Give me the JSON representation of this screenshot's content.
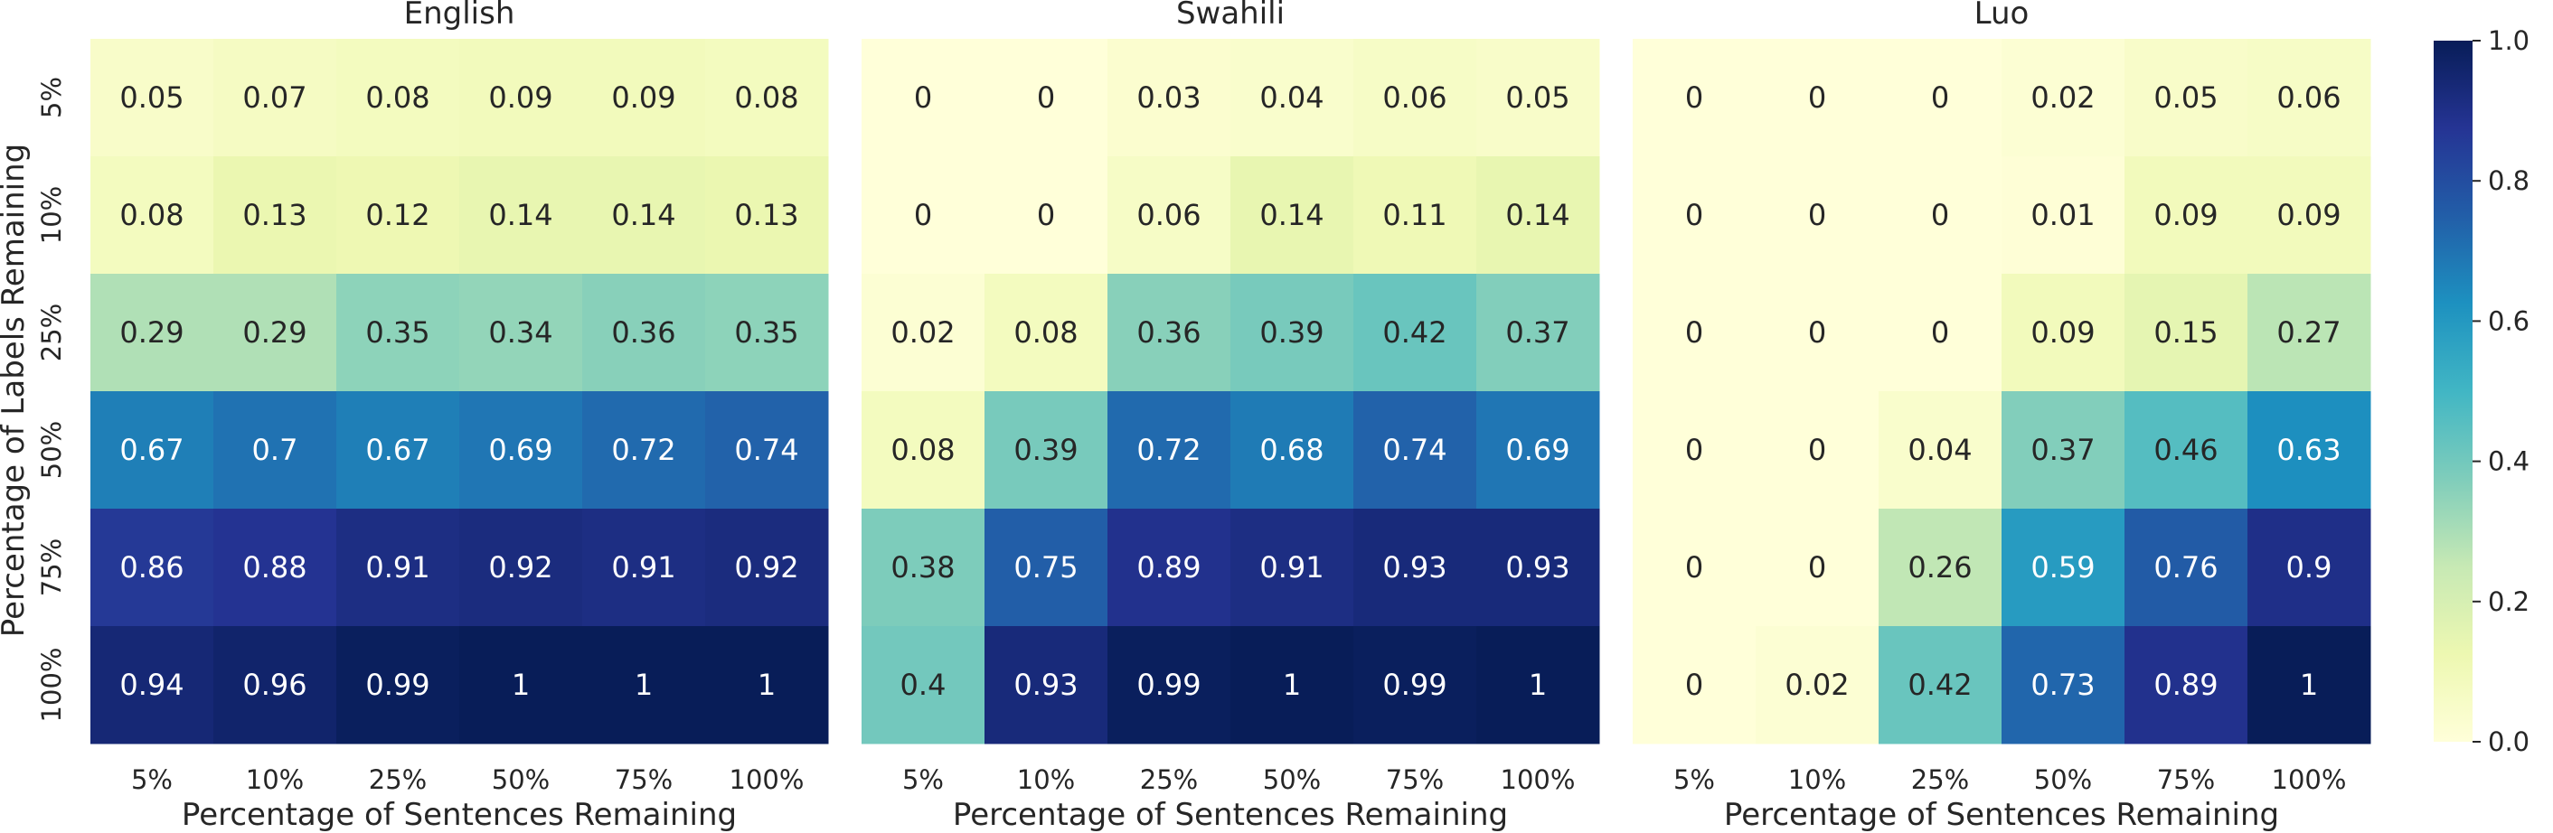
{
  "chart_data": {
    "type": "heatmap",
    "ylabel": "Percentage of Labels Remaining",
    "row_labels": [
      "5%",
      "10%",
      "25%",
      "50%",
      "75%",
      "100%"
    ],
    "col_labels": [
      "5%",
      "10%",
      "25%",
      "50%",
      "75%",
      "100%"
    ],
    "colormap": "YlGnBu",
    "colorbar": {
      "range": [
        0.0,
        1.0
      ],
      "ticks": [
        "0.0",
        "0.2",
        "0.4",
        "0.6",
        "0.8",
        "1.0"
      ]
    },
    "panels": [
      {
        "title": "English",
        "xlabel": "Percentage of Sentences Remaining",
        "values": [
          [
            0.05,
            0.07,
            0.08,
            0.09,
            0.09,
            0.08
          ],
          [
            0.08,
            0.13,
            0.12,
            0.14,
            0.14,
            0.13
          ],
          [
            0.29,
            0.29,
            0.35,
            0.34,
            0.36,
            0.35
          ],
          [
            0.67,
            0.7,
            0.67,
            0.69,
            0.72,
            0.74
          ],
          [
            0.86,
            0.88,
            0.91,
            0.92,
            0.91,
            0.92
          ],
          [
            0.94,
            0.96,
            0.99,
            1,
            1,
            1
          ]
        ]
      },
      {
        "title": "Swahili",
        "xlabel": "Percentage of Sentences Remaining",
        "values": [
          [
            0,
            0,
            0.03,
            0.04,
            0.06,
            0.05
          ],
          [
            0,
            0,
            0.06,
            0.14,
            0.11,
            0.14
          ],
          [
            0.02,
            0.08,
            0.36,
            0.39,
            0.42,
            0.37
          ],
          [
            0.08,
            0.39,
            0.72,
            0.68,
            0.74,
            0.69
          ],
          [
            0.38,
            0.75,
            0.89,
            0.91,
            0.93,
            0.93
          ],
          [
            0.4,
            0.93,
            0.99,
            1,
            0.99,
            1
          ]
        ]
      },
      {
        "title": "Luo",
        "xlabel": "Percentage of Sentences Remaining",
        "values": [
          [
            0,
            0,
            0,
            0.02,
            0.05,
            0.06
          ],
          [
            0,
            0,
            0,
            0.01,
            0.09,
            0.09
          ],
          [
            0,
            0,
            0,
            0.09,
            0.15,
            0.27
          ],
          [
            0,
            0,
            0.04,
            0.37,
            0.46,
            0.63
          ],
          [
            0,
            0,
            0.26,
            0.59,
            0.76,
            0.9
          ],
          [
            0,
            0.02,
            0.42,
            0.73,
            0.89,
            1
          ]
        ]
      }
    ]
  }
}
